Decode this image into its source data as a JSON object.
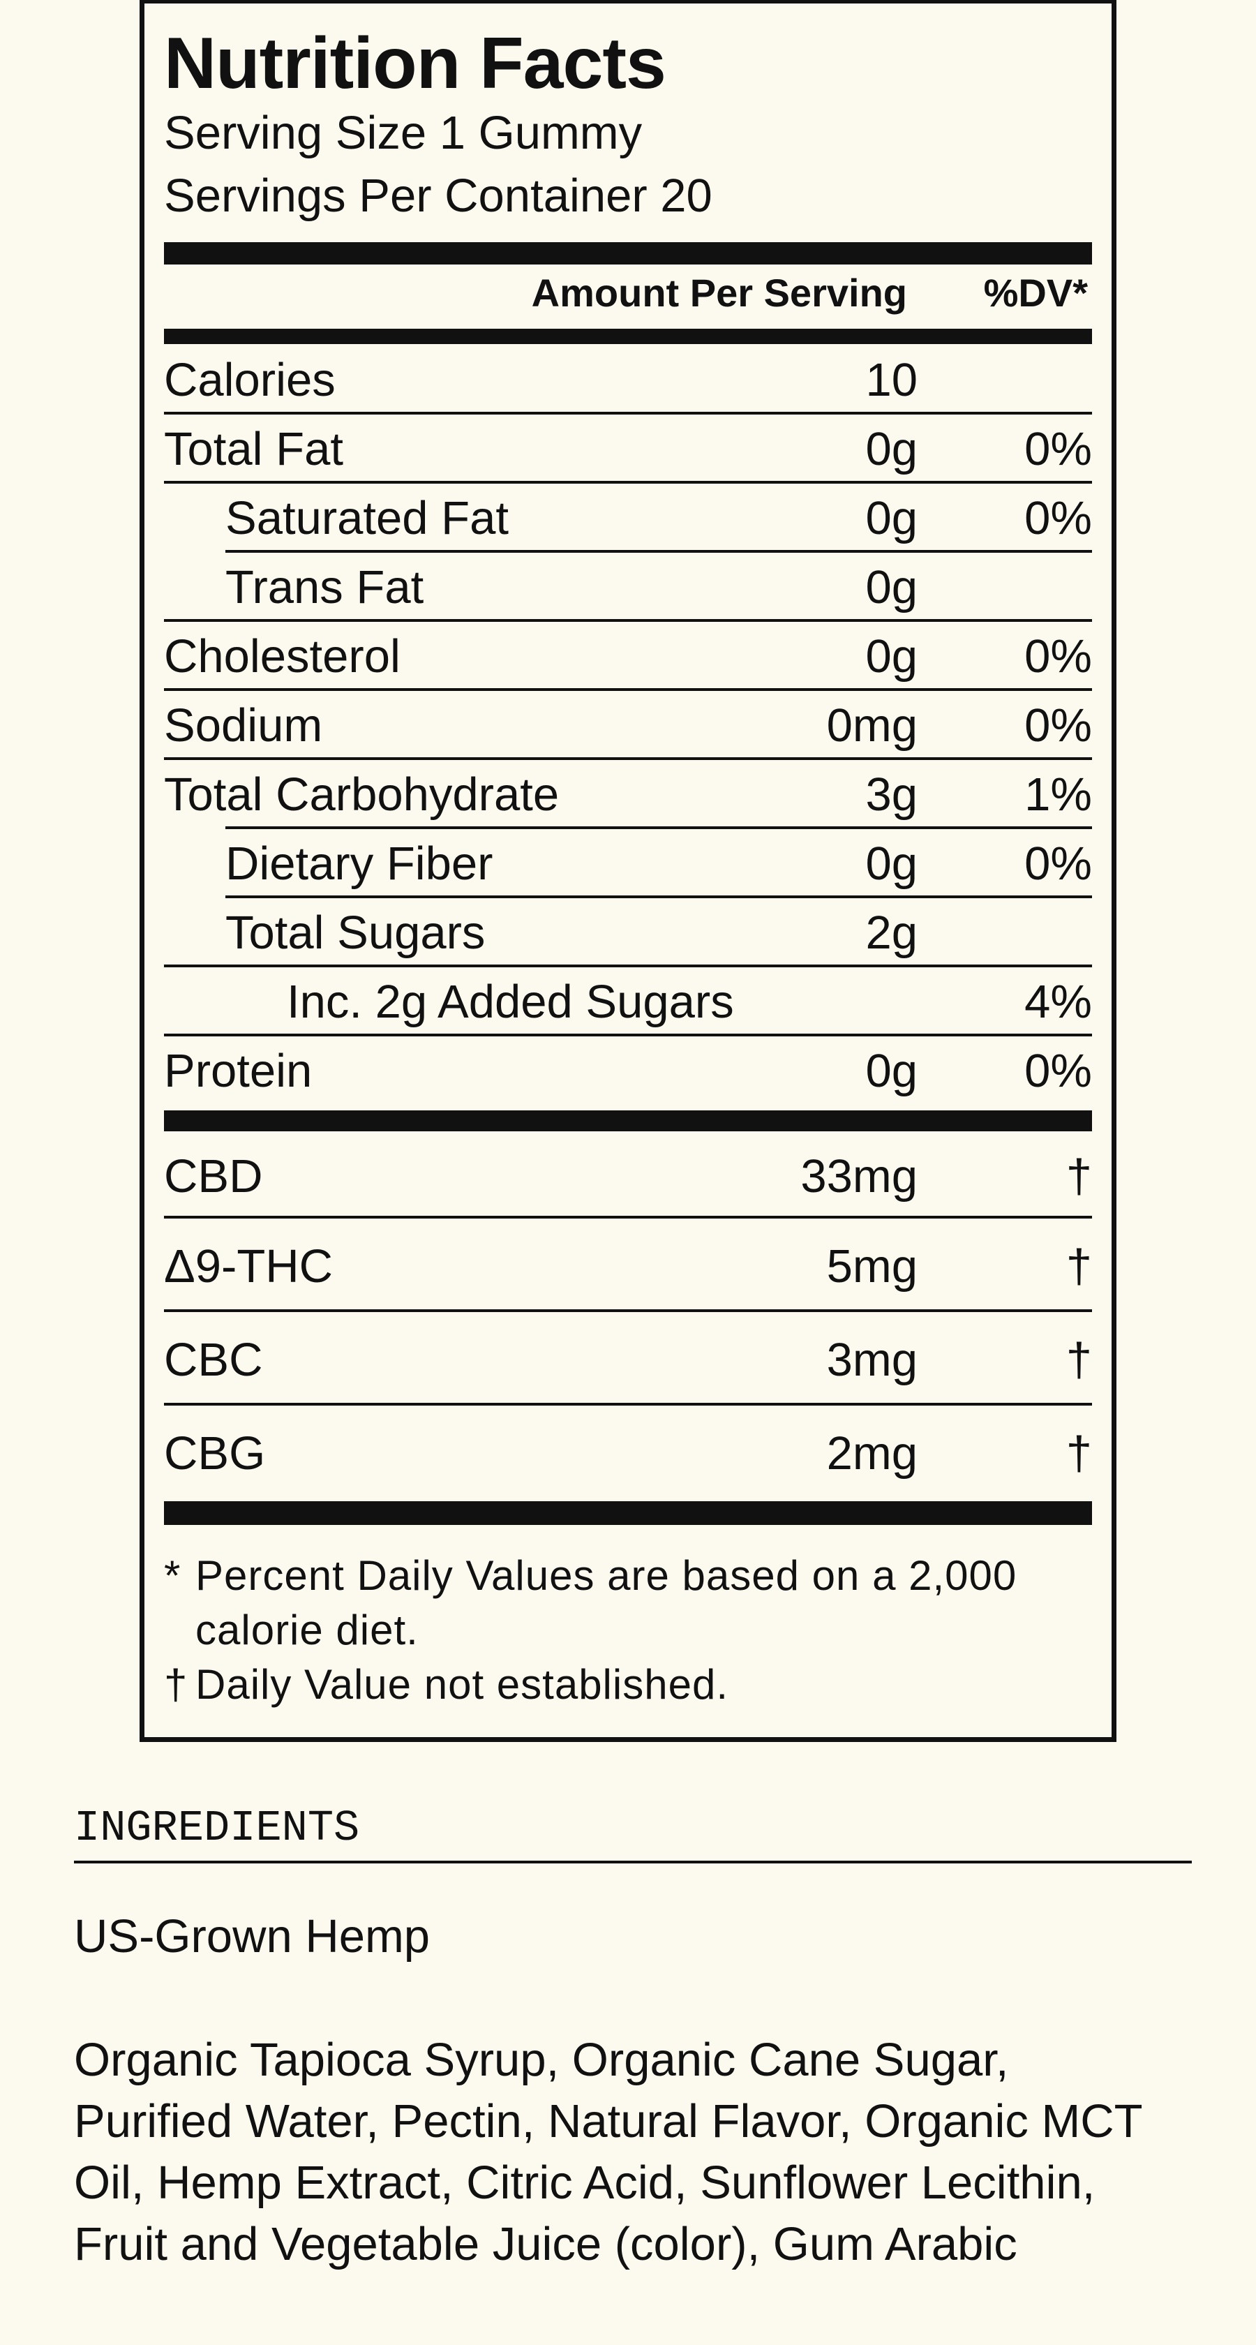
{
  "label": {
    "title": "Nutrition Facts",
    "serving_size": "Serving Size 1 Gummy",
    "servings_per_container": "Servings Per Container 20",
    "header_amount": "Amount Per Serving",
    "header_dv": "%DV*",
    "nutrients": [
      {
        "name": "Calories",
        "amount": "10",
        "dv": ""
      },
      {
        "name": "Total Fat",
        "amount": "0g",
        "dv": "0%"
      },
      {
        "name": "Saturated Fat",
        "amount": "0g",
        "dv": "0%"
      },
      {
        "name": "Trans Fat",
        "amount": "0g",
        "dv": ""
      },
      {
        "name": "Cholesterol",
        "amount": "0g",
        "dv": "0%"
      },
      {
        "name": "Sodium",
        "amount": "0mg",
        "dv": "0%"
      },
      {
        "name": "Total Carbohydrate",
        "amount": "3g",
        "dv": "1%"
      },
      {
        "name": "Dietary Fiber",
        "amount": "0g",
        "dv": "0%"
      },
      {
        "name": "Total Sugars",
        "amount": "2g",
        "dv": ""
      },
      {
        "name": "Inc. 2g Added Sugars",
        "amount": "",
        "dv": "4%"
      },
      {
        "name": "Protein",
        "amount": "0g",
        "dv": "0%"
      }
    ],
    "cannabinoids": [
      {
        "name": "CBD",
        "amount": "33mg",
        "dv": "†"
      },
      {
        "name": "Δ9-THC",
        "amount": "5mg",
        "dv": "†"
      },
      {
        "name": "CBC",
        "amount": "3mg",
        "dv": "†"
      },
      {
        "name": "CBG",
        "amount": "2mg",
        "dv": "†"
      }
    ],
    "footnote_1_symbol": "*",
    "footnote_1_text": "Percent Daily Values are based on a 2,000 calorie diet.",
    "footnote_2_symbol": "†",
    "footnote_2_text": "Daily Value not established."
  },
  "ingredients": {
    "heading": "INGREDIENTS",
    "source": "US-Grown Hemp",
    "list": "Organic Tapioca Syrup, Organic Cane Sugar, Purified Water, Pectin, Natural Flavor, Organic MCT Oil, Hemp Extract, Citric Acid, Sunflower Lecithin, Fruit and Vegetable Juice (color), Gum Arabic"
  },
  "colors": {
    "background": "#fcfaee",
    "ink": "#111111"
  }
}
